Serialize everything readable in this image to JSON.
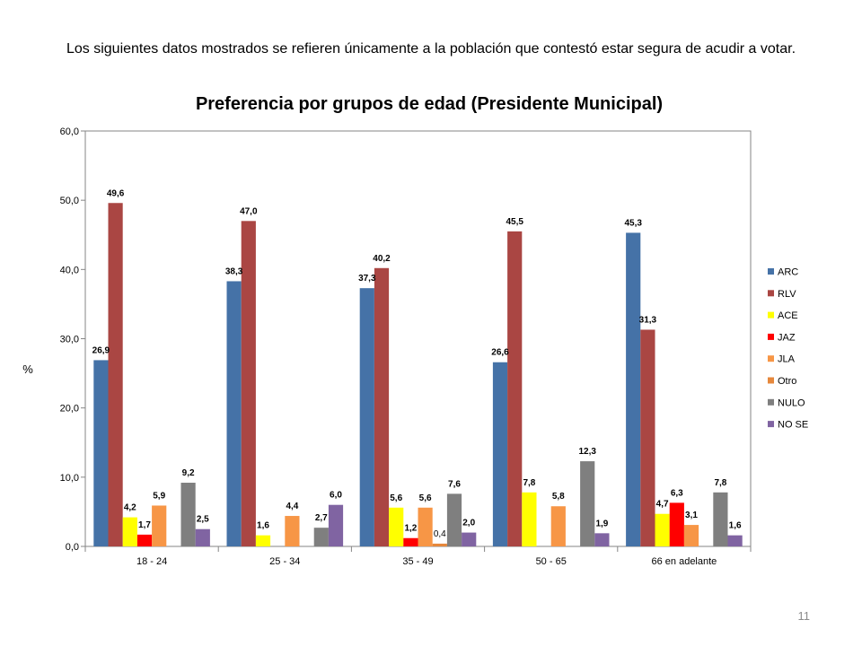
{
  "slide": {
    "intro_text": "Los siguientes datos mostrados se refieren únicamente a la población que contestó estar segura de acudir a votar.",
    "page_number": "11"
  },
  "chart_data": {
    "type": "bar",
    "title": "Preferencia por grupos de edad (Presidente Municipal)",
    "ylabel": "%",
    "xlabel": "",
    "ylim": [
      0,
      60
    ],
    "yticks": [
      "0,0",
      "10,0",
      "20,0",
      "30,0",
      "40,0",
      "50,0",
      "60,0"
    ],
    "grid": false,
    "legend_position": "right",
    "categories": [
      "18 - 24",
      "25 - 34",
      "35 - 49",
      "50 - 65",
      "66 en adelante"
    ],
    "series": [
      {
        "name": "ARC",
        "color": "#4572a7",
        "values": [
          26.9,
          38.3,
          37.3,
          26.6,
          45.3
        ],
        "labels": [
          "26,9",
          "38,3",
          "37,3",
          "26,6",
          "45,3"
        ]
      },
      {
        "name": "RLV",
        "color": "#aa4643",
        "values": [
          49.6,
          47.0,
          40.2,
          45.5,
          31.3
        ],
        "labels": [
          "49,6",
          "47,0",
          "40,2",
          "45,5",
          "31,3"
        ]
      },
      {
        "name": "ACE",
        "color": "#ffff00",
        "values": [
          4.2,
          1.6,
          5.6,
          7.8,
          4.7
        ],
        "labels": [
          "4,2",
          "1,6",
          "5,6",
          "7,8",
          "4,7"
        ]
      },
      {
        "name": "JAZ",
        "color": "#ff0000",
        "values": [
          1.7,
          null,
          1.2,
          null,
          6.3
        ],
        "labels": [
          "1,7",
          "",
          "1,2",
          "",
          "6,3"
        ]
      },
      {
        "name": "JLA",
        "color": "#f79646",
        "values": [
          5.9,
          4.4,
          5.6,
          5.8,
          3.1
        ],
        "labels": [
          "5,9",
          "4,4",
          "5,6",
          "5,8",
          "3,1"
        ]
      },
      {
        "name": "Otro",
        "color": "#e6883c",
        "values": [
          null,
          null,
          0.4,
          null,
          null
        ],
        "labels": [
          "",
          "",
          "0,4",
          "",
          ""
        ]
      },
      {
        "name": "NULO",
        "color": "#7f7f7f",
        "values": [
          9.2,
          2.7,
          7.6,
          12.3,
          7.8
        ],
        "labels": [
          "9,2",
          "2,7",
          "7,6",
          "12,3",
          "7,8"
        ]
      },
      {
        "name": "NO SE",
        "color": "#8064a2",
        "values": [
          2.5,
          6.0,
          2.0,
          1.9,
          1.6
        ],
        "labels": [
          "2,5",
          "6,0",
          "2,0",
          "1,9",
          "1,6"
        ]
      }
    ]
  }
}
